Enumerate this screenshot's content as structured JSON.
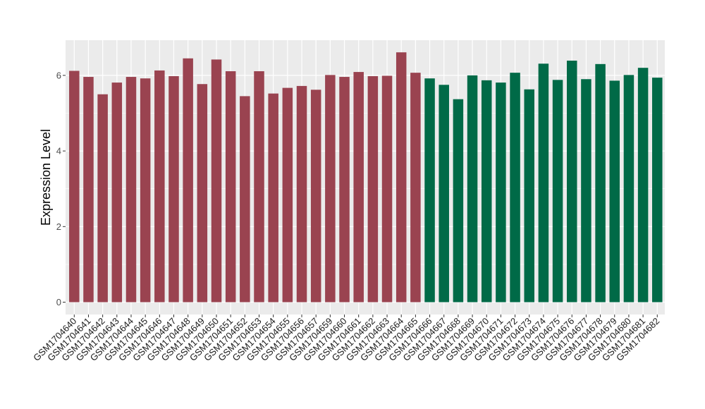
{
  "chart_data": {
    "type": "bar",
    "title": "",
    "xlabel": "",
    "ylabel": "Expression Level",
    "ylim": [
      0,
      6.85
    ],
    "yticks": [
      0,
      2,
      4,
      6
    ],
    "grid": true,
    "colors": {
      "panel": "#ebebeb",
      "grid": "#ffffff",
      "group_1": "#9a4350",
      "group_2": "#006a47"
    },
    "categories": [
      "GSM1704640",
      "GSM1704641",
      "GSM1704642",
      "GSM1704643",
      "GSM1704644",
      "GSM1704645",
      "GSM1704646",
      "GSM1704647",
      "GSM1704648",
      "GSM1704649",
      "GSM1704650",
      "GSM1704651",
      "GSM1704652",
      "GSM1704653",
      "GSM1704654",
      "GSM1704655",
      "GSM1704656",
      "GSM1704657",
      "GSM1704659",
      "GSM1704660",
      "GSM1704661",
      "GSM1704662",
      "GSM1704663",
      "GSM1704664",
      "GSM1704665",
      "GSM1704666",
      "GSM1704667",
      "GSM1704668",
      "GSM1704669",
      "GSM1704670",
      "GSM1704671",
      "GSM1704672",
      "GSM1704673",
      "GSM1704674",
      "GSM1704675",
      "GSM1704676",
      "GSM1704677",
      "GSM1704678",
      "GSM1704679",
      "GSM1704680",
      "GSM1704681",
      "GSM1704682"
    ],
    "values": [
      6.12,
      5.96,
      5.5,
      5.81,
      5.96,
      5.92,
      6.13,
      5.98,
      6.45,
      5.77,
      6.42,
      6.11,
      5.45,
      6.11,
      5.52,
      5.67,
      5.72,
      5.62,
      6.01,
      5.96,
      6.09,
      5.98,
      5.99,
      6.61,
      6.07,
      5.92,
      5.75,
      5.37,
      6.0,
      5.87,
      5.81,
      6.07,
      5.63,
      6.31,
      5.88,
      6.39,
      5.9,
      6.3,
      5.86,
      6.01,
      6.2,
      5.94
    ],
    "bar_groups": [
      1,
      1,
      1,
      1,
      1,
      1,
      1,
      1,
      1,
      1,
      1,
      1,
      1,
      1,
      1,
      1,
      1,
      1,
      1,
      1,
      1,
      1,
      1,
      1,
      1,
      2,
      2,
      2,
      2,
      2,
      2,
      2,
      2,
      2,
      2,
      2,
      2,
      2,
      2,
      2,
      2,
      2
    ]
  }
}
